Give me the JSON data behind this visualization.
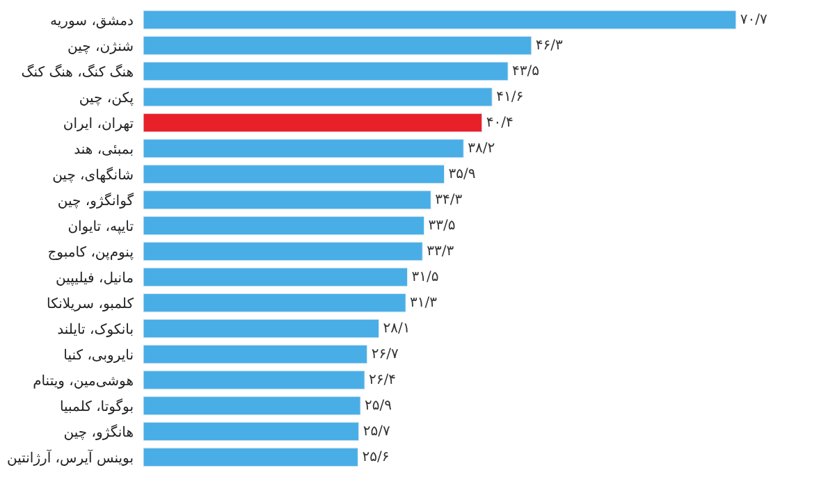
{
  "chart_data": {
    "type": "bar",
    "orientation": "horizontal",
    "categories": [
      "دمشق، سوریه",
      "شنژن، چین",
      "هنگ کنگ، هنگ کنگ",
      "پکن، چین",
      "تهران، ایران",
      "بمبئی، هند",
      "شانگهای، چین",
      "گوانگژو، چین",
      "تایپه، تایوان",
      "پنوم‌پن، کامبوج",
      "مانیل، فیلیپین",
      "کلمبو، سریلانکا",
      "بانکوک، تایلند",
      "نایروبی، کنیا",
      "هوشی‌مین، ویتنام",
      "بوگوتا، کلمبیا",
      "هانگژو، چین",
      "بوینس آیرس، آرژانتین"
    ],
    "values": [
      70.7,
      46.3,
      43.5,
      41.6,
      40.4,
      38.2,
      35.9,
      34.3,
      33.5,
      33.3,
      31.5,
      31.3,
      28.1,
      26.7,
      26.4,
      25.9,
      25.7,
      25.6
    ],
    "value_labels": [
      "۷۰/۷",
      "۴۶/۳",
      "۴۳/۵",
      "۴۱/۶",
      "۴۰/۴",
      "۳۸/۲",
      "۳۵/۹",
      "۳۴/۳",
      "۳۳/۵",
      "۳۳/۳",
      "۳۱/۵",
      "۳۱/۳",
      "۲۸/۱",
      "۲۶/۷",
      "۲۶/۴",
      "۲۵/۹",
      "۲۵/۷",
      "۲۵/۶"
    ],
    "colors": [
      "#4aaee6",
      "#4aaee6",
      "#4aaee6",
      "#4aaee6",
      "#e8202a",
      "#4aaee6",
      "#4aaee6",
      "#4aaee6",
      "#4aaee6",
      "#4aaee6",
      "#4aaee6",
      "#4aaee6",
      "#4aaee6",
      "#4aaee6",
      "#4aaee6",
      "#4aaee6",
      "#4aaee6",
      "#4aaee6"
    ]
  }
}
